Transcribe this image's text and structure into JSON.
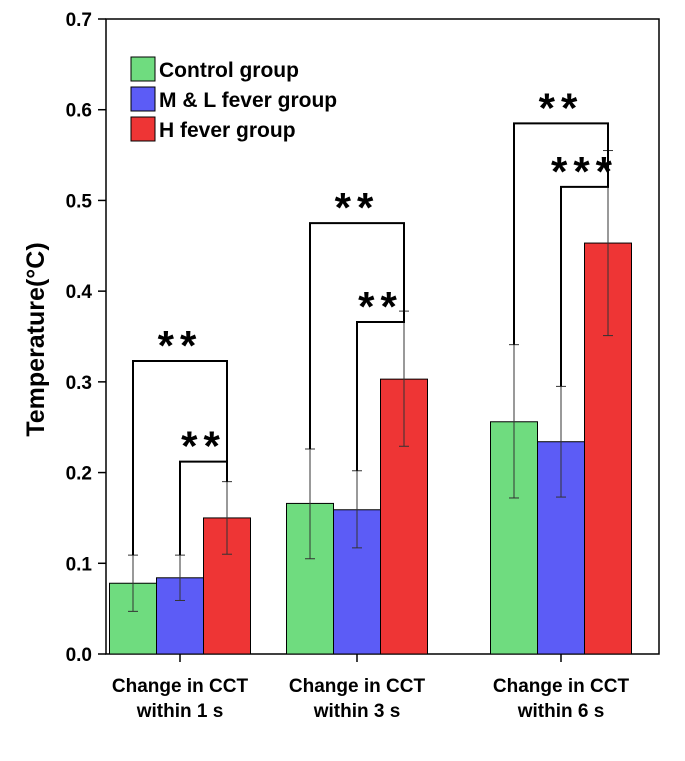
{
  "chart_data": {
    "type": "bar",
    "title": "",
    "xlabel": "",
    "ylabel": "Temperature(°C)",
    "ylim": [
      0,
      0.7
    ],
    "yticks": [
      "0.0",
      "0.1",
      "0.2",
      "0.3",
      "0.4",
      "0.5",
      "0.6",
      "0.7"
    ],
    "grid": false,
    "legend_position": "top-left",
    "categories": [
      [
        "Change in CCT",
        "within 1 s"
      ],
      [
        "Change in CCT",
        "within 3 s"
      ],
      [
        "Change in CCT",
        "within 6 s"
      ]
    ],
    "series": [
      {
        "name": "Control group",
        "color": "#6fdc7f",
        "values": [
          0.078,
          0.166,
          0.256
        ],
        "err_low": [
          0.047,
          0.105,
          0.172
        ],
        "err_high": [
          0.109,
          0.226,
          0.341
        ]
      },
      {
        "name": "M & L fever group",
        "color": "#5c5cf6",
        "values": [
          0.084,
          0.159,
          0.234
        ],
        "err_low": [
          0.059,
          0.117,
          0.173
        ],
        "err_high": [
          0.109,
          0.202,
          0.295
        ]
      },
      {
        "name": "H fever group",
        "color": "#ee3535",
        "values": [
          0.15,
          0.303,
          0.453
        ],
        "err_low": [
          0.11,
          0.229,
          0.351
        ],
        "err_high": [
          0.19,
          0.378,
          0.555
        ]
      }
    ],
    "annotations": [
      {
        "text": "**",
        "group": 0,
        "from": 0,
        "to": 2,
        "y": 0.323
      },
      {
        "text": "**",
        "group": 0,
        "from": 1,
        "to": 2,
        "y": 0.212
      },
      {
        "text": "**",
        "group": 1,
        "from": 0,
        "to": 2,
        "y": 0.475
      },
      {
        "text": "**",
        "group": 1,
        "from": 1,
        "to": 2,
        "y": 0.366
      },
      {
        "text": "**",
        "group": 2,
        "from": 0,
        "to": 2,
        "y": 0.585
      },
      {
        "text": "***",
        "group": 2,
        "from": 1,
        "to": 2,
        "y": 0.515
      }
    ]
  }
}
